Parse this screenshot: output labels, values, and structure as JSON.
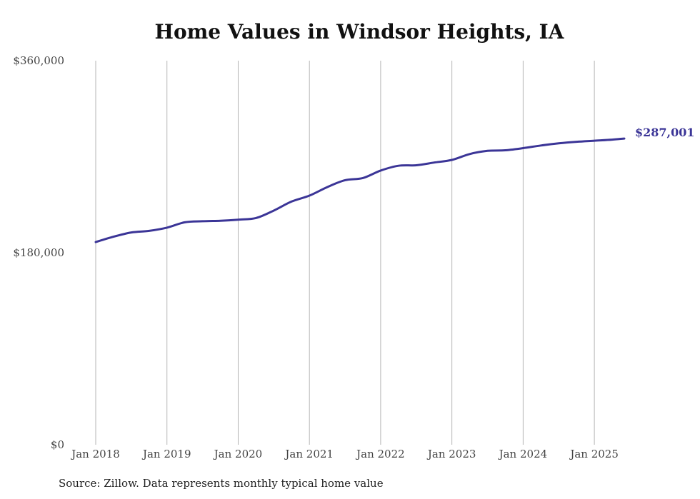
{
  "chart_data": {
    "type": "line",
    "title": "Home Values in Windsor Heights, IA",
    "source": "Source: Zillow. Data represents monthly typical home value",
    "ylim": [
      0,
      360000
    ],
    "yticks": [
      {
        "value": 0,
        "label": "$0"
      },
      {
        "value": 180000,
        "label": "$180,000"
      },
      {
        "value": 360000,
        "label": "$360,000"
      }
    ],
    "xlim": [
      2018.0,
      2025.42
    ],
    "xticks": [
      {
        "value": 2018,
        "label": "Jan 2018"
      },
      {
        "value": 2019,
        "label": "Jan 2019"
      },
      {
        "value": 2020,
        "label": "Jan 2020"
      },
      {
        "value": 2021,
        "label": "Jan 2021"
      },
      {
        "value": 2022,
        "label": "Jan 2022"
      },
      {
        "value": 2023,
        "label": "Jan 2023"
      },
      {
        "value": 2024,
        "label": "Jan 2024"
      },
      {
        "value": 2025,
        "label": "Jan 2025"
      }
    ],
    "grid": "vertical",
    "line_color": "#3b3597",
    "end_label": "$287,001",
    "series": [
      {
        "name": "Typical home value",
        "x": [
          2018.0,
          2018.25,
          2018.5,
          2018.75,
          2019.0,
          2019.25,
          2019.5,
          2019.75,
          2020.0,
          2020.25,
          2020.5,
          2020.75,
          2021.0,
          2021.25,
          2021.5,
          2021.75,
          2022.0,
          2022.25,
          2022.5,
          2022.75,
          2023.0,
          2023.25,
          2023.5,
          2023.75,
          2024.0,
          2024.25,
          2024.5,
          2024.75,
          2025.0,
          2025.25,
          2025.42
        ],
        "values": [
          190000,
          195000,
          199000,
          200500,
          203500,
          208500,
          209500,
          210000,
          211000,
          212500,
          219500,
          228000,
          233500,
          241500,
          248000,
          250000,
          257000,
          261500,
          262000,
          264500,
          267000,
          272500,
          275500,
          276000,
          278000,
          280500,
          282500,
          284000,
          285000,
          286000,
          287001
        ]
      }
    ]
  }
}
